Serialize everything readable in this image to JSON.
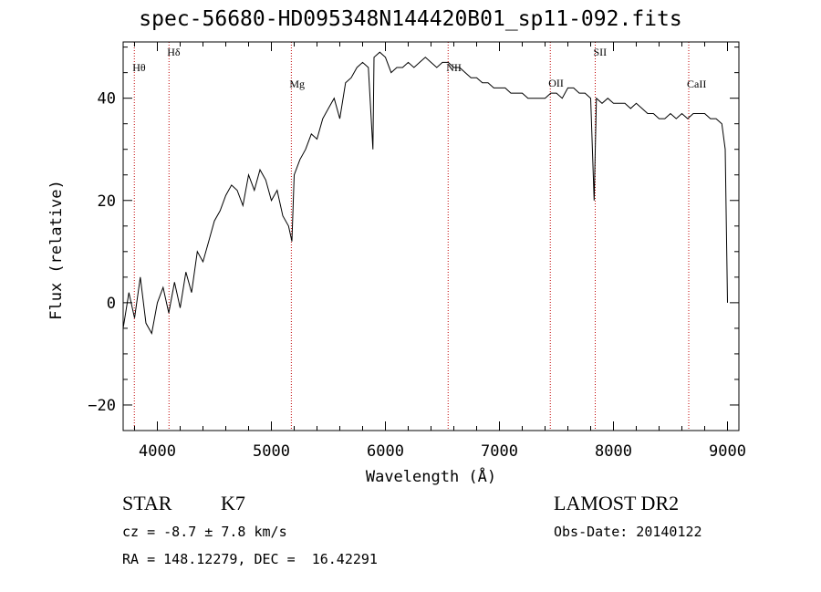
{
  "chart_data": {
    "type": "line",
    "title": "spec-56680-HD095348N144420B01_sp11-092.fits",
    "xlabel": "Wavelength (Å)",
    "ylabel": "Flux (relative)",
    "xlim": [
      3700,
      9100
    ],
    "ylim": [
      -25,
      51
    ],
    "xticks": [
      4000,
      5000,
      6000,
      7000,
      8000,
      9000
    ],
    "yticks": [
      -20,
      0,
      20,
      40
    ],
    "series": [
      {
        "x": [
          3700,
          3750,
          3800,
          3850,
          3900,
          3950,
          4000,
          4050,
          4100,
          4150,
          4200,
          4250,
          4300,
          4350,
          4400,
          4450,
          4500,
          4550,
          4600,
          4650,
          4700,
          4750,
          4800,
          4850,
          4900,
          4950,
          5000,
          5050,
          5100,
          5150,
          5180,
          5200,
          5250,
          5300,
          5350,
          5400,
          5450,
          5500,
          5550,
          5600,
          5650,
          5700,
          5750,
          5800,
          5850,
          5890,
          5900,
          5950,
          6000,
          6050,
          6100,
          6150,
          6200,
          6250,
          6300,
          6350,
          6400,
          6450,
          6500,
          6550,
          6600,
          6650,
          6700,
          6750,
          6800,
          6850,
          6900,
          6950,
          7000,
          7050,
          7100,
          7150,
          7200,
          7250,
          7300,
          7350,
          7400,
          7450,
          7500,
          7550,
          7600,
          7650,
          7700,
          7750,
          7800,
          7830,
          7850,
          7900,
          7950,
          8000,
          8050,
          8100,
          8150,
          8200,
          8250,
          8300,
          8350,
          8400,
          8450,
          8500,
          8550,
          8600,
          8650,
          8700,
          8750,
          8800,
          8850,
          8900,
          8950,
          8980,
          9000
        ],
        "y": [
          -5,
          2,
          -3,
          5,
          -4,
          -6,
          0,
          3,
          -2,
          4,
          -1,
          6,
          2,
          10,
          8,
          12,
          16,
          18,
          21,
          23,
          22,
          19,
          25,
          22,
          26,
          24,
          20,
          22,
          17,
          15,
          12,
          25,
          28,
          30,
          33,
          32,
          36,
          38,
          40,
          36,
          43,
          44,
          46,
          47,
          46,
          30,
          48,
          49,
          48,
          45,
          46,
          46,
          47,
          46,
          47,
          48,
          47,
          46,
          47,
          47,
          46,
          46,
          45,
          44,
          44,
          43,
          43,
          42,
          42,
          42,
          41,
          41,
          41,
          40,
          40,
          40,
          40,
          41,
          41,
          40,
          42,
          42,
          41,
          41,
          40,
          20,
          40,
          39,
          40,
          39,
          39,
          39,
          38,
          39,
          38,
          37,
          37,
          36,
          36,
          37,
          36,
          37,
          36,
          37,
          37,
          37,
          36,
          36,
          35,
          30,
          0
        ]
      }
    ],
    "line_markers": [
      {
        "label": "Hθ",
        "x": 3798
      },
      {
        "label": "Hδ",
        "x": 4102
      },
      {
        "label": "Mg",
        "x": 5175
      },
      {
        "label": "NII",
        "x": 6550
      },
      {
        "label": "OII",
        "x": 7446
      },
      {
        "label": "SII",
        "x": 7840
      },
      {
        "label": "CaII",
        "x": 8660
      }
    ],
    "grid": false
  },
  "info": {
    "object_type": "STAR",
    "subclass": "K7",
    "survey": "LAMOST DR2",
    "cz": "cz = -8.7 ± 7.8 km/s",
    "obs_date": "Obs-Date: 20140122",
    "coords": "RA = 148.12279, DEC =  16.42291"
  },
  "colors": {
    "spectrum": "#000000",
    "marker": "#c00000"
  }
}
